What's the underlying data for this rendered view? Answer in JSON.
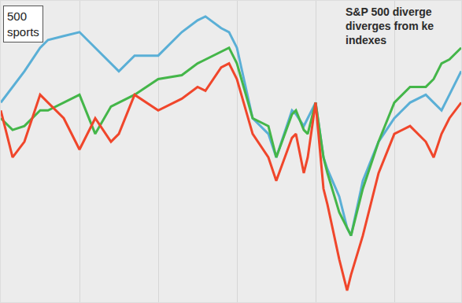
{
  "chart_data": {
    "type": "line",
    "title": [
      "S&P 500 diverge",
      "diverges from ke",
      "indexes"
    ],
    "annotations": [
      [
        "500",
        "sports"
      ]
    ],
    "x": [
      0,
      15,
      30,
      50,
      60,
      80,
      100,
      120,
      140,
      150,
      170,
      200,
      230,
      250,
      260,
      280,
      290,
      300,
      320,
      340,
      350,
      370,
      375,
      385,
      390,
      400,
      410,
      415,
      430,
      440,
      445,
      460,
      480,
      500,
      520,
      540,
      550,
      560,
      570,
      585
    ],
    "series": [
      {
        "color": "#5aafd6",
        "values": [
          255,
          275,
          295,
          325,
          335,
          340,
          345,
          325,
          305,
          295,
          315,
          315,
          345,
          360,
          365,
          350,
          345,
          325,
          235,
          215,
          185,
          245,
          240,
          225,
          235,
          255,
          185,
          170,
          135,
          95,
          85,
          155,
          205,
          235,
          255,
          265,
          255,
          245,
          265,
          295
        ]
      },
      {
        "color": "#44b649",
        "values": [
          235,
          220,
          225,
          245,
          245,
          255,
          265,
          215,
          250,
          255,
          265,
          285,
          290,
          305,
          310,
          320,
          325,
          305,
          235,
          225,
          185,
          240,
          245,
          220,
          215,
          255,
          185,
          165,
          115,
          95,
          85,
          145,
          205,
          255,
          275,
          275,
          285,
          305,
          310,
          325
        ]
      },
      {
        "color": "#f0462b",
        "values": [
          245,
          185,
          205,
          265,
          255,
          235,
          195,
          235,
          205,
          215,
          265,
          245,
          260,
          275,
          270,
          300,
          305,
          285,
          215,
          185,
          155,
          210,
          215,
          165,
          185,
          255,
          145,
          125,
          55,
          15,
          35,
          85,
          165,
          215,
          225,
          205,
          185,
          215,
          235,
          255
        ]
      }
    ],
    "xlim": [
      0,
      585
    ],
    "xticks": [
      100,
      200,
      300,
      400,
      500
    ],
    "ylim": [
      0,
      385
    ],
    "yticks": [],
    "grid": true,
    "tick_labels": false
  }
}
